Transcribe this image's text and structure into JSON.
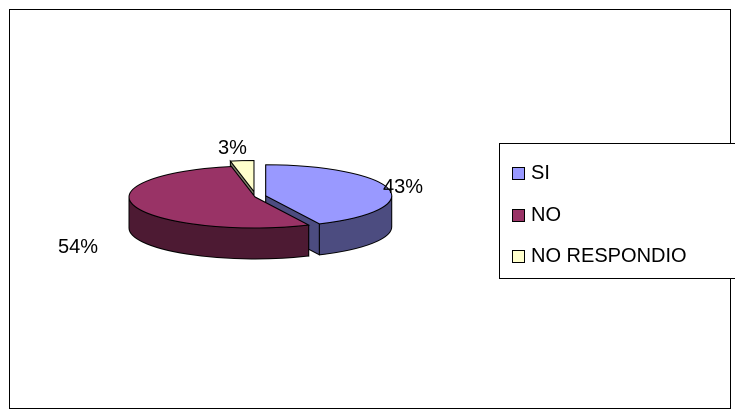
{
  "chart_data": {
    "type": "pie",
    "three_d": true,
    "title": "",
    "categories": [
      "SI",
      "NO",
      "NO RESPONDIO"
    ],
    "values": [
      43,
      54,
      3
    ],
    "data_labels": [
      "43%",
      "54%",
      "3%"
    ],
    "colors": [
      "#9999ff",
      "#993366",
      "#ffffcc"
    ],
    "side_colors": [
      "#4c4c80",
      "#4d1a33",
      "#80806a"
    ],
    "exploded": [
      true,
      false,
      true
    ],
    "legend": {
      "position": "right",
      "entries": [
        "SI",
        "NO",
        "NO RESPONDIO"
      ]
    }
  }
}
